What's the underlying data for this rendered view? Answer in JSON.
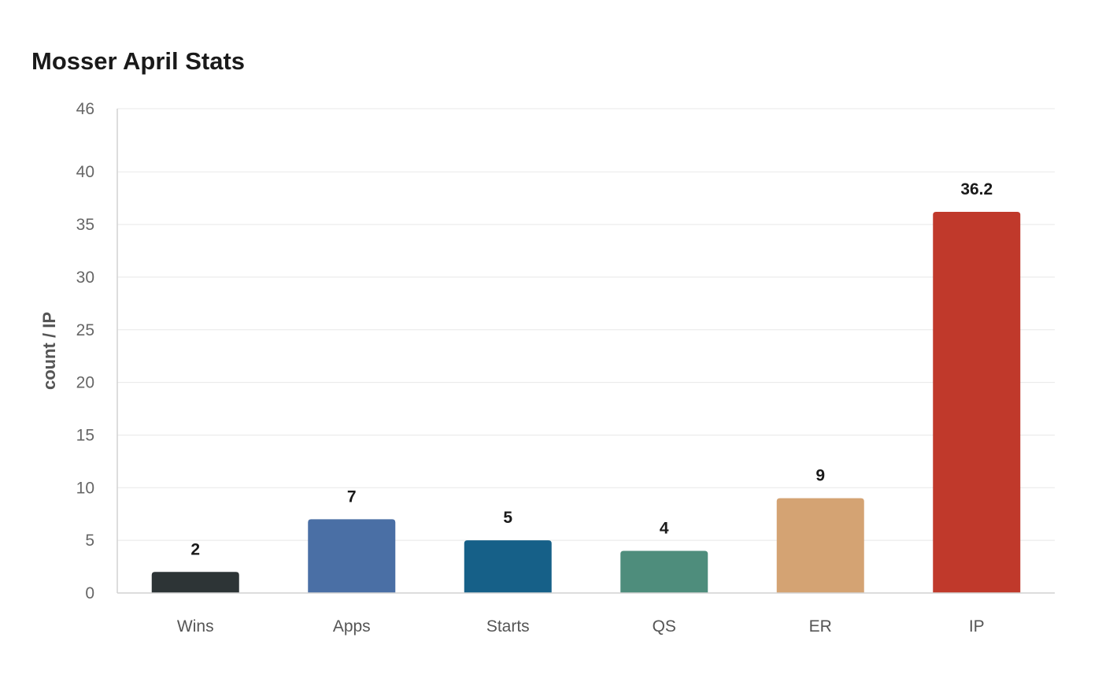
{
  "chart_data": {
    "type": "bar",
    "title": "Mosser April Stats",
    "xlabel": "",
    "ylabel": "count / IP",
    "categories": [
      "Wins",
      "Apps",
      "Starts",
      "QS",
      "ER",
      "IP"
    ],
    "values": [
      2,
      7,
      5,
      4,
      9,
      36.2
    ],
    "value_labels": [
      "2",
      "7",
      "5",
      "4",
      "9",
      "36.2"
    ],
    "colors": [
      "#2d3436",
      "#4a6fa5",
      "#166088",
      "#4e8d7c",
      "#d4a373",
      "#c0392b"
    ],
    "ylim": [
      0,
      46
    ],
    "yticks": [
      0,
      5,
      10,
      15,
      20,
      25,
      30,
      35,
      40,
      46
    ],
    "grid": true,
    "legend": "none"
  }
}
